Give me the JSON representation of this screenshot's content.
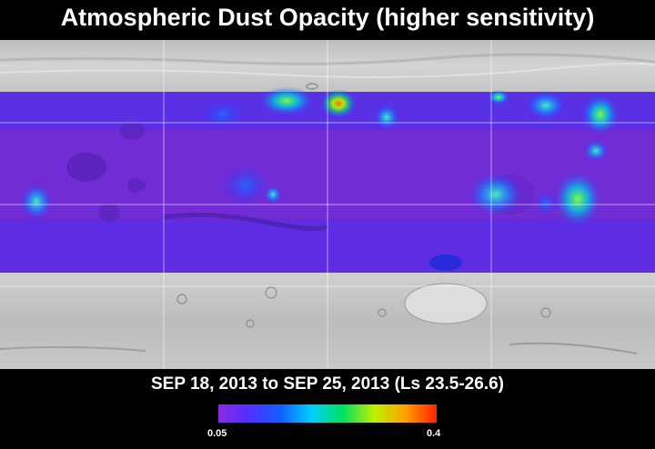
{
  "title": "Atmospheric Dust Opacity (higher sensitivity)",
  "date_range": "SEP 18, 2013 to SEP 25, 2013 (Ls 23.5-26.6)",
  "colorbar": {
    "min_label": "0.05",
    "max_label": "0.4",
    "min_value": 0.05,
    "max_value": 0.4,
    "colors": [
      "#8a2be2",
      "#5030ff",
      "#1060ff",
      "#00d0ff",
      "#00e060",
      "#c0f000",
      "#ffa000",
      "#ff2000"
    ]
  },
  "map": {
    "projection": "simple-cylindrical",
    "data_band_background": "#6a2ad8",
    "grid": true
  }
}
